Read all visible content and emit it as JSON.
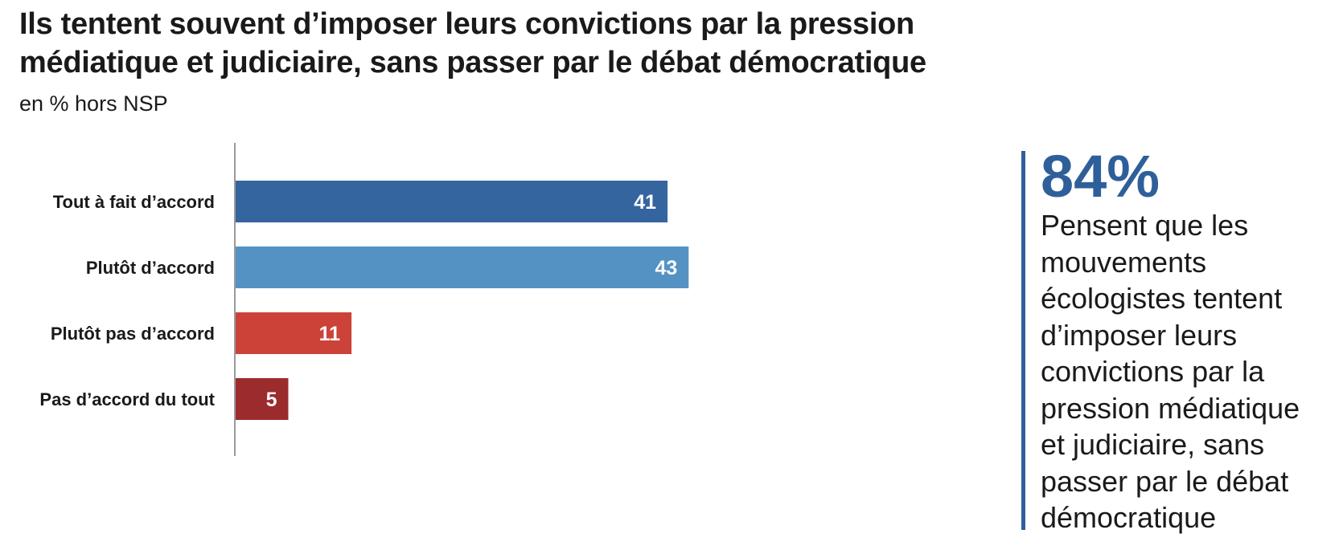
{
  "colors": {
    "accent": "#2f5f9a",
    "axis": "#9a9a9a",
    "bar_colors": [
      "#35659e",
      "#5592c4",
      "#cc4239",
      "#9c2b2d"
    ]
  },
  "chart_data": {
    "type": "bar",
    "orientation": "horizontal",
    "title": "Ils tentent souvent d’imposer leurs convictions par la pression médiatique et judiciaire, sans passer par le débat démocratique",
    "subtitle": "en % hors NSP",
    "categories": [
      "Tout à fait d’accord",
      "Plutôt d’accord",
      "Plutôt pas d’accord",
      "Pas d’accord du tout"
    ],
    "values": [
      41,
      43,
      11,
      5
    ],
    "xlim": [
      0,
      100
    ],
    "grid": false,
    "legend": "none"
  },
  "callout": {
    "big_number": "84%",
    "text": "Pensent que les mouvements écologistes tentent d’imposer leurs convictions par la pression médiatique et judiciaire, sans passer par le débat démocratique"
  }
}
